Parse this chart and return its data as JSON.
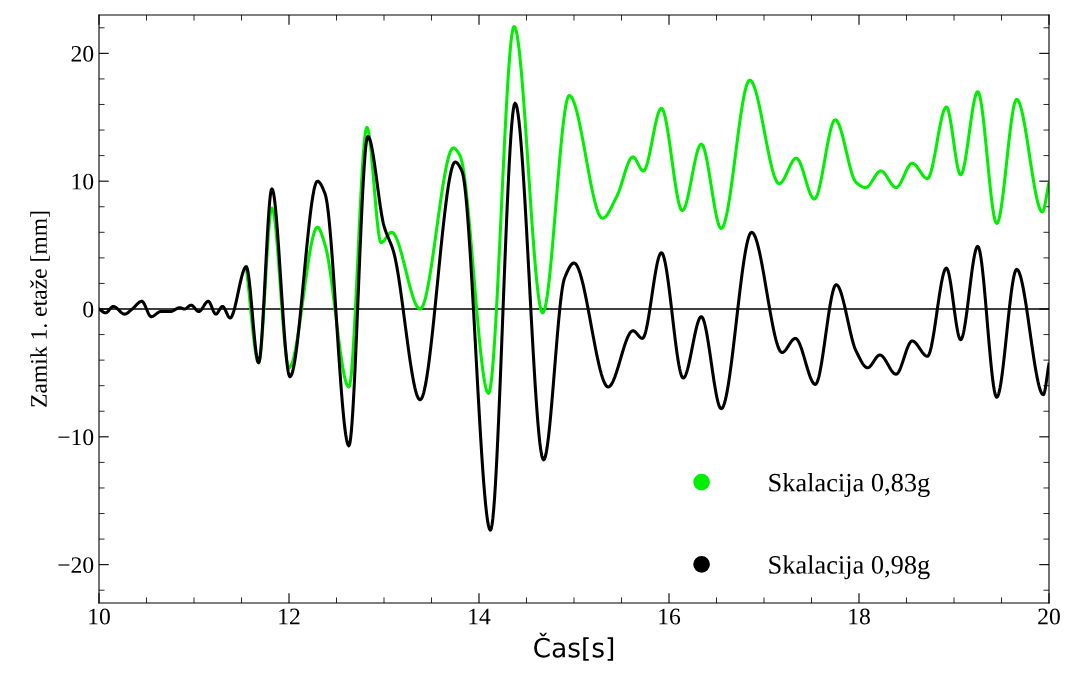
{
  "chart_data": {
    "type": "line",
    "xlabel": "Čas[s]",
    "ylabel": "Zamik 1. etaže [mm]",
    "xlim": [
      10,
      20
    ],
    "ylim": [
      -23,
      23
    ],
    "xticks": [
      10,
      12,
      14,
      16,
      18,
      20
    ],
    "yticks": [
      {
        "value": -20,
        "label": "−20"
      },
      {
        "value": -10,
        "label": "−10"
      },
      0,
      10,
      20
    ],
    "grid": false,
    "legend": "bottom right",
    "ref_lines": [
      {
        "axis": "y",
        "value": 0,
        "color": "#000000"
      }
    ],
    "series": [
      {
        "name": "Skalacija 0,83g",
        "color": "#00ee00",
        "x": [
          11.55,
          11.68,
          11.82,
          12.0,
          12.3,
          12.38,
          12.63,
          12.82,
          12.97,
          13.08,
          13.38,
          13.73,
          13.8,
          14.1,
          14.37,
          14.67,
          14.95,
          15.3,
          15.45,
          15.62,
          15.73,
          15.92,
          16.14,
          16.34,
          16.55,
          16.85,
          17.16,
          17.34,
          17.53,
          17.75,
          17.97,
          18.07,
          18.23,
          18.39,
          18.56,
          18.72,
          18.92,
          19.07,
          19.25,
          19.45,
          19.66,
          19.93,
          20.0
        ],
        "values": [
          3.3,
          -4.2,
          7.9,
          -4.6,
          6.4,
          5.0,
          -6.1,
          14.2,
          5.2,
          6.0,
          0.0,
          12.6,
          12.0,
          -6.6,
          22.1,
          -0.3,
          16.7,
          7.1,
          8.8,
          11.9,
          10.8,
          15.7,
          7.7,
          12.9,
          6.3,
          17.9,
          9.8,
          11.8,
          8.6,
          14.8,
          9.9,
          9.5,
          10.8,
          9.5,
          11.4,
          10.2,
          15.8,
          10.5,
          17.0,
          6.7,
          16.4,
          7.6,
          9.9
        ]
      },
      {
        "name": "Skalacija 0,98g",
        "color": "#000000",
        "x": [
          10.0,
          10.07,
          10.15,
          10.27,
          10.35,
          10.45,
          10.55,
          10.65,
          10.75,
          10.85,
          10.9,
          10.97,
          11.05,
          11.15,
          11.23,
          11.3,
          11.38,
          11.55,
          11.68,
          11.82,
          12.01,
          12.3,
          12.38,
          12.63,
          12.83,
          13.0,
          13.1,
          13.38,
          13.75,
          13.82,
          14.12,
          14.38,
          14.68,
          14.9,
          15.0,
          15.36,
          15.62,
          15.72,
          15.92,
          16.15,
          16.34,
          16.55,
          16.87,
          17.19,
          17.33,
          17.54,
          17.76,
          17.97,
          18.09,
          18.22,
          18.39,
          18.56,
          18.72,
          18.92,
          19.07,
          19.25,
          19.45,
          19.66,
          19.94,
          20.0
        ],
        "values": [
          0,
          -0.3,
          0.2,
          -0.4,
          0,
          0.6,
          -0.6,
          -0.2,
          -0.2,
          0.1,
          0,
          0.3,
          -0.2,
          0.6,
          -0.4,
          0.2,
          -0.7,
          3.3,
          -4.2,
          9.4,
          -5.3,
          10.0,
          9.0,
          -10.7,
          13.5,
          6.5,
          4.5,
          -7.1,
          11.5,
          10.8,
          -17.3,
          16.1,
          -11.8,
          2.4,
          3.6,
          -6.1,
          -1.7,
          -2.3,
          4.4,
          -5.4,
          -0.6,
          -7.8,
          6.0,
          -3.4,
          -2.3,
          -5.9,
          1.9,
          -3.3,
          -4.6,
          -3.6,
          -5.1,
          -2.5,
          -3.7,
          3.2,
          -2.4,
          4.9,
          -6.9,
          3.1,
          -6.7,
          -4.3
        ]
      }
    ]
  }
}
